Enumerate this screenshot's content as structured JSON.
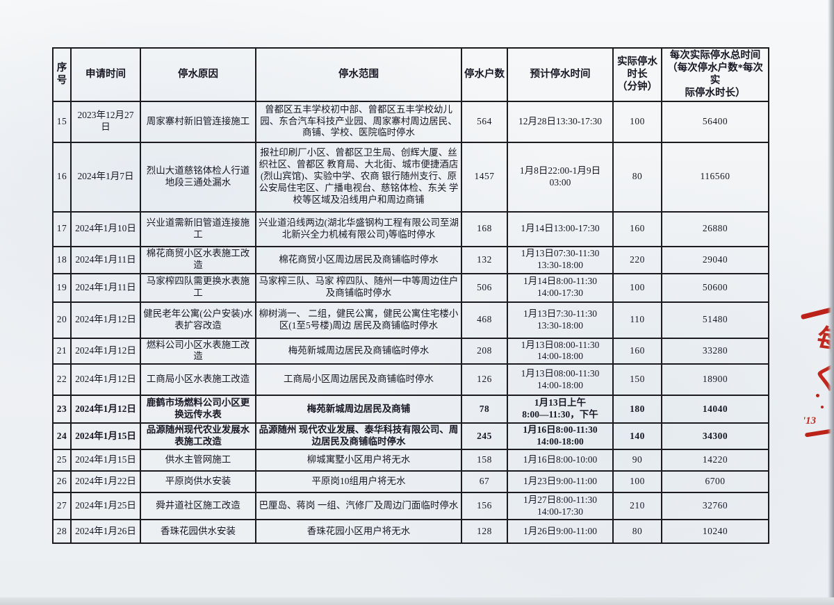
{
  "table": {
    "columns": [
      {
        "key": "no",
        "label": "序\n号"
      },
      {
        "key": "date",
        "label": "申请时间"
      },
      {
        "key": "reason",
        "label": "停水原因"
      },
      {
        "key": "scope",
        "label": "停水范围"
      },
      {
        "key": "households",
        "label": "停水户数"
      },
      {
        "key": "planned",
        "label": "预计停水时间"
      },
      {
        "key": "minutes",
        "label": "实际停水\n时长\n（分钟）"
      },
      {
        "key": "total",
        "label": "每次实际停水总时间\n（每次停水户数*每次实\n际停水时长）"
      }
    ],
    "rows": [
      {
        "no": "15",
        "date": "2023年12月27日",
        "reason": "周家寨村新旧管连接施工",
        "scope": "曾都区五丰学校初中部、曾都区五丰学校幼儿园、东合汽车科技产业园、周家寨村周边居民、 商铺、学校、医院临时停水",
        "households": "564",
        "planned": "12月28日13:30-17:30",
        "minutes": "100",
        "total": "56400"
      },
      {
        "no": "16",
        "date": "2024年1月7日",
        "reason": "烈山大道慈铭体检人行道地段三通处漏水",
        "scope": "报社印刷厂小区、曾都区卫生局、创辉大厦、丝织社区、曾都区 教育局、大北街、城市便捷酒店(烈山宾馆)、实验中学、农商 银行随州支行、原公安局住宅区、广播电视台、慈铭体检、东关 学校等区域及沿线用户和周边商铺",
        "households": "1457",
        "planned": "1月8日22:00-1月9日\n03:00",
        "minutes": "80",
        "total": "116560"
      },
      {
        "no": "17",
        "date": "2024年1月10日",
        "reason": "兴业道需新旧管道连接施工",
        "scope": "兴业道沿线两边(湖北华盛钢构工程有限公司至湖北新兴全力机械有限公司)等临时停水",
        "households": "168",
        "planned": "1月14日13:00-17:30",
        "minutes": "160",
        "total": "26880"
      },
      {
        "no": "18",
        "date": "2024年1月11日",
        "reason": "棉花商贸小区水表施工改造",
        "scope": "棉花商贸小区周边居民及商铺临时停水",
        "households": "132",
        "planned": "1月13日07:30-11:30\n13:30-18:00",
        "minutes": "220",
        "total": "29040"
      },
      {
        "no": "19",
        "date": "2024年1月11日",
        "reason": "马家榨四队需更换水表施工",
        "scope": "马家榨三队、马家  榨四队、随州一中等周边住户及商铺临时停水",
        "households": "506",
        "planned": "1月14日8:00-11:30\n14:00-17:30",
        "minutes": "100",
        "total": "50600"
      },
      {
        "no": "20",
        "date": "2024年1月12日",
        "reason": "健民老年公寓(公户安装)水表扩容改造",
        "scope": "柳树淌一、  二组，健民公寓，健民公寓住宅楼小区(1至5号楼)周边 居民及商铺临时停水",
        "households": "468",
        "planned": "1月13日7:30-11:30\n13:30-18:00",
        "minutes": "110",
        "total": "51480"
      },
      {
        "no": "21",
        "date": "2024年1月12日",
        "reason": "燃料公司小区水表施工改造",
        "scope": "梅苑新城周边居民及商铺临时停水",
        "households": "208",
        "planned": "1月13日08:00-11:30\n14:00-18:00",
        "minutes": "160",
        "total": "33280"
      },
      {
        "no": "22",
        "date": "2024年1月12日",
        "reason": "工商局小区水表施工改造",
        "scope": "工商局小区周边居民及商铺临时停水",
        "households": "126",
        "planned": "1月13日08:00-11:30\n14:00-18:00",
        "minutes": "150",
        "total": "18900"
      },
      {
        "no": "23",
        "date": "2024年1月12日",
        "reason": "鹿鹤市场燃料公司小区更换远传水表",
        "scope": "梅苑新城周边居民及商铺",
        "households": "78",
        "planned": "1月13日上午\n8:00—11:30，下午",
        "minutes": "180",
        "total": "14040"
      },
      {
        "no": "24",
        "date": "2024年1月15日",
        "reason": "品源随州现代农业发展水表施工改造",
        "scope": "品源随州  现代农业发展、泰华科技有限公司、周边居民及商铺临时停水",
        "households": "245",
        "planned": "1月16日8:00-11:30\n14:00-18:00",
        "minutes": "140",
        "total": "34300"
      },
      {
        "no": "25",
        "date": "2024年1月15日",
        "reason": "供水主管网施工",
        "scope": "柳城寓墅小区用户将无水",
        "households": "158",
        "planned": "1月16日8:00-10:00",
        "minutes": "90",
        "total": "14220"
      },
      {
        "no": "26",
        "date": "2024年1月22日",
        "reason": "平原岗供水安装",
        "scope": "平原岗10组用户将无水",
        "households": "67",
        "planned": "1月23日9:00-11:00",
        "minutes": "100",
        "total": "6700"
      },
      {
        "no": "27",
        "date": "2024年1月25日",
        "reason": "舜井道社区施工改造",
        "scope": "巴厘岛、蒋岗  一组、汽修厂及周边门面临时停水",
        "households": "156",
        "planned": "1月27日8:00-11:30\n14:00-17:30",
        "minutes": "210",
        "total": "32760"
      },
      {
        "no": "28",
        "date": "2024年1月26日",
        "reason": "香珠花园供水安装",
        "scope": "香珠花园小区用户将无水",
        "households": "128",
        "planned": "1月26日9:00-11:00",
        "minutes": "80",
        "total": "10240"
      }
    ]
  },
  "annotations": {
    "glyph_fragment": "每",
    "squiggle": "く",
    "note": "'13"
  },
  "colors": {
    "ink": "#181824",
    "border": "#1b1b1f",
    "red_ink": "#bb2218",
    "paper": "#eef1f4"
  }
}
